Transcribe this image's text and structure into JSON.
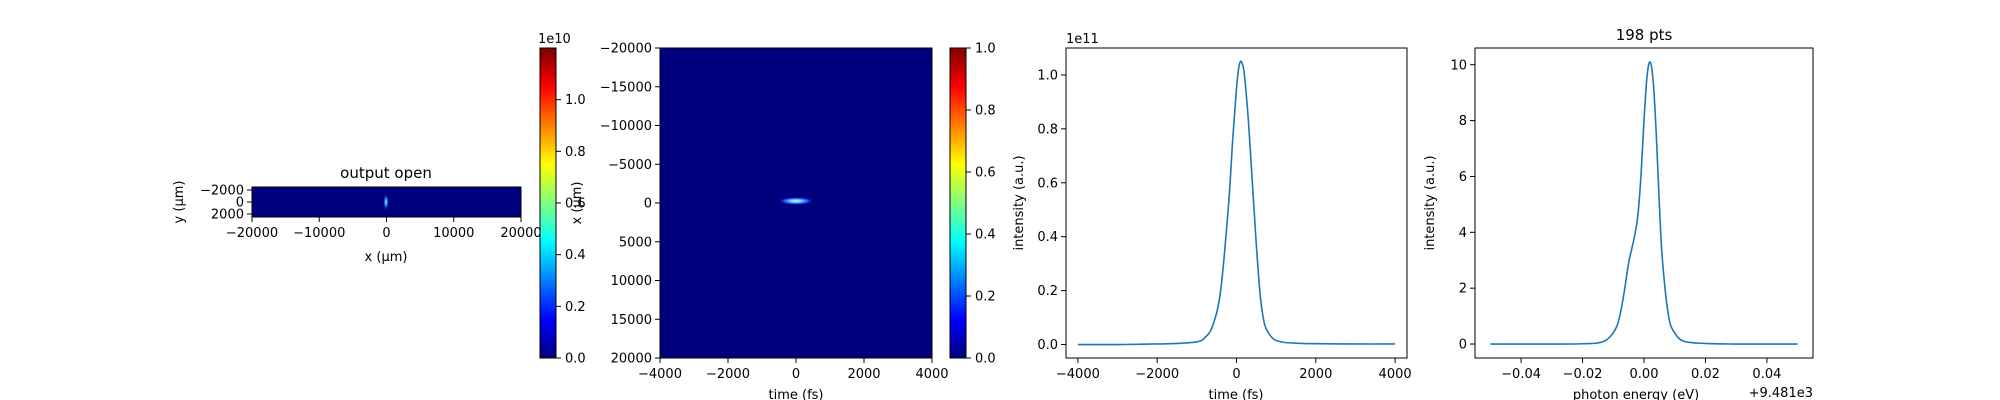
{
  "colors": {
    "line": "#1f77b4",
    "background": "#00007f",
    "colormap": [
      "#00007f",
      "#0000ff",
      "#007fff",
      "#00ffff",
      "#7fff7f",
      "#ffff00",
      "#ff7f00",
      "#ff0000",
      "#7f0000"
    ]
  },
  "chart_data": [
    {
      "type": "heatmap",
      "title": "output open",
      "xlabel": "x (μm)",
      "ylabel": "y (μm)",
      "xlim": [
        -20000,
        20000
      ],
      "ylim": [
        2000,
        -2000
      ],
      "xticks": [
        "−20000",
        "−10000",
        "0",
        "10000",
        "20000"
      ],
      "yticks": [
        "−2000",
        "0",
        "2000"
      ],
      "colormap": "jet",
      "spot": {
        "x": 0,
        "y": 0
      },
      "colorbar": {
        "range": [
          0,
          12000000000.0
        ],
        "ticks": [
          "0.0",
          "0.2",
          "0.4",
          "0.6",
          "0.8",
          "1.0"
        ],
        "offset": "1e10"
      },
      "grid": false
    },
    {
      "type": "heatmap",
      "title": "",
      "xlabel": "time (fs)",
      "ylabel": "x (μm)",
      "xlim": [
        -4000,
        4000
      ],
      "ylim": [
        -20000,
        20000
      ],
      "xticks": [
        "−4000",
        "−2000",
        "0",
        "2000",
        "4000"
      ],
      "yticks": [
        "−20000",
        "−15000",
        "−10000",
        "−5000",
        "0",
        "5000",
        "10000",
        "15000",
        "20000"
      ],
      "colormap": "jet",
      "spot": {
        "x": 50,
        "y": 0
      },
      "colorbar": {
        "range": [
          0,
          1
        ],
        "ticks": [
          "0.0",
          "0.2",
          "0.4",
          "0.6",
          "0.8",
          "1.0"
        ]
      },
      "grid": false
    },
    {
      "type": "line",
      "title": "",
      "xlabel": "time (fs)",
      "ylabel": "intensity (a.u.)",
      "xlim": [
        -4300,
        4300
      ],
      "ylim": [
        -0.05,
        1.1
      ],
      "y_scale_label": "1e11",
      "xticks": [
        "−4000",
        "−2000",
        "0",
        "2000",
        "4000"
      ],
      "yticks": [
        "0.0",
        "0.2",
        "0.4",
        "0.6",
        "0.8",
        "1.0"
      ],
      "peak": {
        "x": 100,
        "y": 1.05
      },
      "x": [
        -4000,
        -3000,
        -2000,
        -1500,
        -1000,
        -800,
        -600,
        -400,
        -200,
        -100,
        0,
        50,
        100,
        150,
        200,
        300,
        400,
        500,
        600,
        700,
        800,
        900,
        1000,
        1200,
        1500,
        2000,
        3000,
        4000
      ],
      "y": [
        0.0,
        0.0,
        0.002,
        0.004,
        0.01,
        0.025,
        0.07,
        0.2,
        0.52,
        0.75,
        0.95,
        1.02,
        1.05,
        1.04,
        1.0,
        0.83,
        0.6,
        0.37,
        0.18,
        0.08,
        0.045,
        0.025,
        0.015,
        0.008,
        0.005,
        0.003,
        0.002,
        0.002
      ],
      "grid": false
    },
    {
      "type": "line",
      "title": "198 pts",
      "xlabel": "photon energy (eV)",
      "ylabel": "intensity (a.u.)",
      "xlim": [
        -0.055,
        0.055
      ],
      "ylim": [
        -0.5,
        10.6
      ],
      "x_offset_label": "+9.481e3",
      "xticks": [
        "−0.04",
        "−0.02",
        "0.00",
        "0.02",
        "0.04"
      ],
      "yticks": [
        "0",
        "2",
        "4",
        "6",
        "8",
        "10"
      ],
      "x": [
        -0.05,
        -0.04,
        -0.03,
        -0.02,
        -0.013,
        -0.009,
        -0.007,
        -0.005,
        -0.004,
        -0.003,
        -0.002,
        -0.001,
        0.0,
        0.001,
        0.002,
        0.003,
        0.004,
        0.005,
        0.006,
        0.008,
        0.01,
        0.013,
        0.02,
        0.03,
        0.04,
        0.05
      ],
      "y": [
        0.0,
        0.0,
        0.0,
        0.01,
        0.1,
        0.6,
        1.5,
        2.9,
        3.4,
        3.9,
        4.6,
        6.0,
        8.0,
        9.6,
        10.1,
        9.4,
        7.5,
        5.0,
        3.0,
        1.0,
        0.4,
        0.1,
        0.02,
        0.0,
        0.0,
        0.0
      ],
      "grid": false
    }
  ]
}
